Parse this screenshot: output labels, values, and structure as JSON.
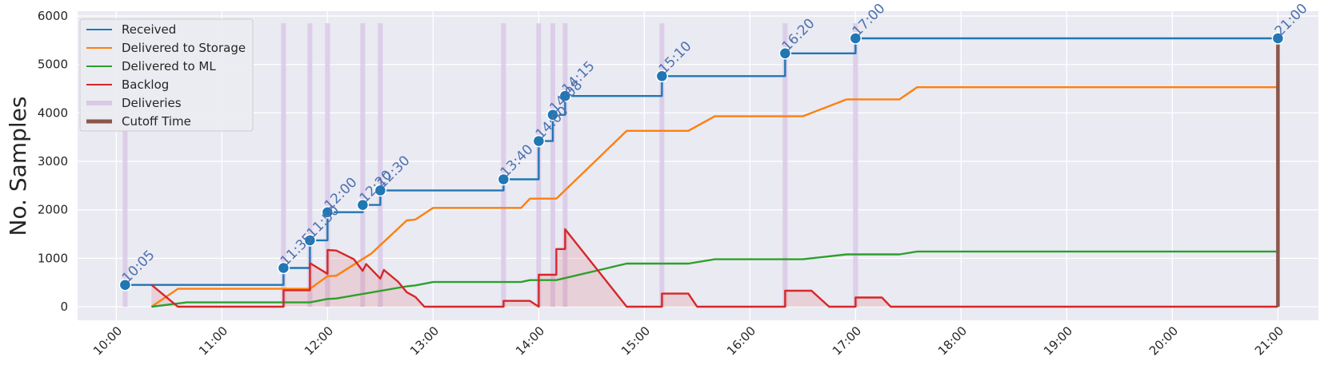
{
  "chart_data": {
    "type": "line",
    "title": "",
    "xlabel": "",
    "ylabel": "No. Samples",
    "x_ticks": [
      "10:00",
      "11:00",
      "12:00",
      "13:00",
      "14:00",
      "15:00",
      "16:00",
      "17:00",
      "18:00",
      "19:00",
      "20:00",
      "21:00"
    ],
    "y_ticks": [
      "0",
      "1000",
      "2000",
      "3000",
      "4000",
      "5000",
      "6000"
    ],
    "xlim": [
      "09:38",
      "21:23"
    ],
    "ylim": [
      -280,
      6100
    ],
    "grid": true,
    "legend_position": "top-left",
    "legend": [
      {
        "label": "Received",
        "color": "#1f77b4",
        "style": "line"
      },
      {
        "label": "Delivered to Storage",
        "color": "#ff7f0e",
        "style": "line"
      },
      {
        "label": "Delivered to ML",
        "color": "#2ca02c",
        "style": "line"
      },
      {
        "label": "Backlog",
        "color": "#d62728",
        "style": "line"
      },
      {
        "label": "Deliveries",
        "color": "#d9c9e6",
        "style": "band"
      },
      {
        "label": "Cutoff Time",
        "color": "#8c564b",
        "style": "thick"
      }
    ],
    "series": [
      {
        "name": "Received",
        "color": "#1f77b4",
        "step": true,
        "points": [
          [
            "10:05",
            450
          ],
          [
            "11:35",
            800
          ],
          [
            "11:50",
            1370
          ],
          [
            "12:00",
            1950
          ],
          [
            "12:20",
            2100
          ],
          [
            "12:30",
            2400
          ],
          [
            "13:40",
            2630
          ],
          [
            "14:00",
            3420
          ],
          [
            "14:08",
            3960
          ],
          [
            "14:15",
            4350
          ],
          [
            "15:10",
            4760
          ],
          [
            "16:20",
            5230
          ],
          [
            "17:00",
            5540
          ],
          [
            "21:00",
            5540
          ]
        ]
      },
      {
        "name": "Delivered to Storage",
        "color": "#ff7f0e",
        "step": false,
        "points": [
          [
            "10:20",
            0
          ],
          [
            "10:35",
            370
          ],
          [
            "11:50",
            370
          ],
          [
            "12:00",
            630
          ],
          [
            "12:05",
            640
          ],
          [
            "12:25",
            1100
          ],
          [
            "12:45",
            1780
          ],
          [
            "12:50",
            1800
          ],
          [
            "13:00",
            2040
          ],
          [
            "13:50",
            2040
          ],
          [
            "13:55",
            2230
          ],
          [
            "14:10",
            2230
          ],
          [
            "14:50",
            3630
          ],
          [
            "15:25",
            3630
          ],
          [
            "15:40",
            3930
          ],
          [
            "16:30",
            3930
          ],
          [
            "16:55",
            4280
          ],
          [
            "17:25",
            4280
          ],
          [
            "17:35",
            4530
          ],
          [
            "21:00",
            4530
          ]
        ]
      },
      {
        "name": "Delivered to ML",
        "color": "#2ca02c",
        "step": false,
        "points": [
          [
            "10:20",
            0
          ],
          [
            "10:40",
            90
          ],
          [
            "11:50",
            90
          ],
          [
            "12:00",
            160
          ],
          [
            "12:05",
            170
          ],
          [
            "12:45",
            420
          ],
          [
            "12:50",
            440
          ],
          [
            "13:00",
            510
          ],
          [
            "13:50",
            510
          ],
          [
            "13:55",
            550
          ],
          [
            "14:10",
            550
          ],
          [
            "14:50",
            890
          ],
          [
            "15:25",
            890
          ],
          [
            "15:40",
            980
          ],
          [
            "16:30",
            980
          ],
          [
            "16:55",
            1080
          ],
          [
            "17:25",
            1080
          ],
          [
            "17:35",
            1140
          ],
          [
            "21:00",
            1140
          ]
        ]
      },
      {
        "name": "Backlog",
        "color": "#d62728",
        "step": false,
        "fill": true,
        "points": [
          [
            "10:20",
            450
          ],
          [
            "10:35",
            0
          ],
          [
            "11:35",
            0
          ],
          [
            "11:35",
            340
          ],
          [
            "11:50",
            340
          ],
          [
            "11:50",
            900
          ],
          [
            "12:00",
            680
          ],
          [
            "12:00",
            1170
          ],
          [
            "12:05",
            1160
          ],
          [
            "12:15",
            980
          ],
          [
            "12:20",
            740
          ],
          [
            "12:22",
            880
          ],
          [
            "12:30",
            580
          ],
          [
            "12:32",
            760
          ],
          [
            "12:40",
            520
          ],
          [
            "12:45",
            300
          ],
          [
            "12:50",
            200
          ],
          [
            "12:55",
            0
          ],
          [
            "13:40",
            0
          ],
          [
            "13:40",
            120
          ],
          [
            "13:55",
            120
          ],
          [
            "14:00",
            0
          ],
          [
            "14:00",
            660
          ],
          [
            "14:10",
            660
          ],
          [
            "14:10",
            1190
          ],
          [
            "14:15",
            1190
          ],
          [
            "14:15",
            1600
          ],
          [
            "14:50",
            0
          ],
          [
            "15:10",
            0
          ],
          [
            "15:10",
            270
          ],
          [
            "15:25",
            270
          ],
          [
            "15:30",
            0
          ],
          [
            "16:20",
            0
          ],
          [
            "16:20",
            330
          ],
          [
            "16:35",
            330
          ],
          [
            "16:45",
            0
          ],
          [
            "17:00",
            0
          ],
          [
            "17:00",
            190
          ],
          [
            "17:15",
            190
          ],
          [
            "17:20",
            0
          ],
          [
            "21:00",
            0
          ]
        ]
      }
    ],
    "deliveries": [
      "10:05",
      "11:35",
      "11:50",
      "12:00",
      "12:20",
      "12:30",
      "13:40",
      "14:00",
      "14:08",
      "14:15",
      "15:10",
      "16:20",
      "17:00"
    ],
    "annotations": [
      {
        "time": "10:05",
        "value": 450,
        "label": "10:05"
      },
      {
        "time": "11:35",
        "value": 800,
        "label": "11:35"
      },
      {
        "time": "11:50",
        "value": 1370,
        "label": "11:50"
      },
      {
        "time": "12:00",
        "value": 1950,
        "label": "12:00"
      },
      {
        "time": "12:20",
        "value": 2100,
        "label": "12:20"
      },
      {
        "time": "12:30",
        "value": 2400,
        "label": "12:30"
      },
      {
        "time": "13:40",
        "value": 2630,
        "label": "13:40"
      },
      {
        "time": "14:00",
        "value": 3420,
        "label": "14:00"
      },
      {
        "time": "14:08",
        "value": 3960,
        "label": "14:08"
      },
      {
        "time": "14:15",
        "value": 4350,
        "label": "14:15"
      },
      {
        "time": "15:10",
        "value": 4760,
        "label": "15:10"
      },
      {
        "time": "16:20",
        "value": 5230,
        "label": "16:20"
      },
      {
        "time": "17:00",
        "value": 5540,
        "label": "17:00"
      },
      {
        "time": "21:00",
        "value": 5540,
        "label": "21:00"
      }
    ],
    "cutoff": {
      "time": "21:00",
      "value": 5540,
      "color": "#8c564b"
    }
  }
}
